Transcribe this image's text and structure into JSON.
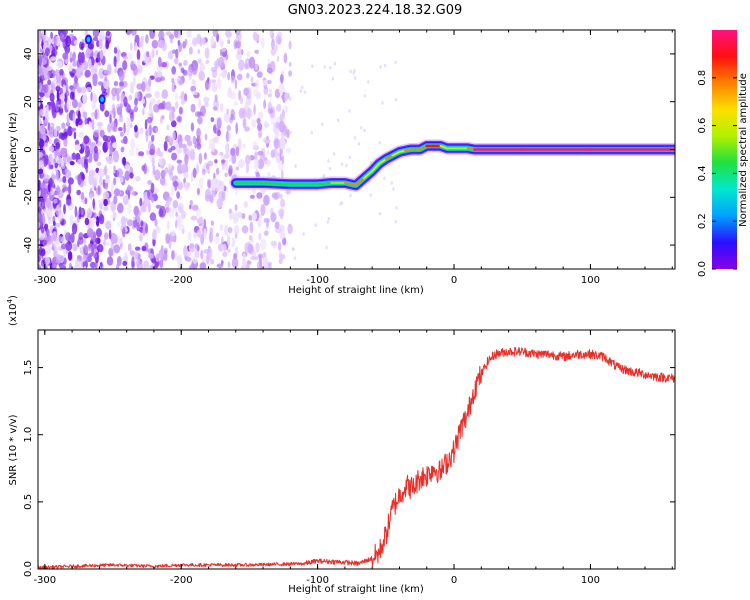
{
  "title": "GN03.2023.224.18.32.G09",
  "chart_data": [
    {
      "type": "heatmap",
      "xlabel": "Height of straight line (km)",
      "ylabel": "Frequency (Hz)",
      "xlim": [
        -305,
        162
      ],
      "ylim": [
        -50,
        50
      ],
      "xticks": [
        -300,
        -200,
        -100,
        0,
        100
      ],
      "yticks": [
        -40,
        -20,
        0,
        20,
        40
      ],
      "colorbar": {
        "label": "Normalized spectral amplitude",
        "range": [
          0.0,
          1.0
        ],
        "ticks": [
          "0.0",
          "0.2",
          "0.4",
          "0.6",
          "0.8"
        ],
        "colors": [
          "#8a00e6",
          "#2a10ff",
          "#00a0ff",
          "#00e8d0",
          "#20e040",
          "#b0f000",
          "#ffe000",
          "#ff8000",
          "#ff1010",
          "#ff1080"
        ]
      },
      "ridge": {
        "x": [
          -160,
          -140,
          -120,
          -100,
          -90,
          -80,
          -72,
          -66,
          -60,
          -55,
          -50,
          -45,
          -40,
          -36,
          -32,
          -25,
          -20,
          -15,
          -10,
          -5,
          0,
          10,
          15,
          50,
          100,
          162
        ],
        "y": [
          -14,
          -14,
          -14.5,
          -14.5,
          -14,
          -14,
          -15,
          -12,
          -9,
          -6,
          -4,
          -2.5,
          -1,
          -0.5,
          0,
          0,
          1.5,
          1.5,
          1.5,
          0.5,
          0.5,
          0.5,
          0,
          0,
          0,
          0
        ],
        "amplitude": [
          0.1,
          0.45,
          0.55,
          0.5,
          0.5,
          0.6,
          0.9,
          0.7,
          0.65,
          0.6,
          0.75,
          0.7,
          0.6,
          0.7,
          0.85,
          0.6,
          0.9,
          0.9,
          0.8,
          0.6,
          0.6,
          0.6,
          1.0,
          1.0,
          1.0,
          1.0
        ]
      }
    },
    {
      "type": "line",
      "xlabel": "Height of straight line (km)",
      "ylabel": "SNR (10 * v/v)",
      "scale_label": "(x10",
      "scale_exponent": "4",
      "scale_suffix": ")",
      "xlim": [
        -305,
        162
      ],
      "ylim": [
        0,
        1.78
      ],
      "xticks": [
        -300,
        -200,
        -100,
        0,
        100
      ],
      "yticks": [
        0.0,
        0.5,
        1.0,
        1.5
      ],
      "ytick_labels": [
        "0.0",
        "0.5",
        "1.0",
        "1.5"
      ],
      "series": [
        {
          "color": "#e8302a",
          "x": [
            -305,
            -280,
            -250,
            -220,
            -200,
            -150,
            -110,
            -100,
            -80,
            -70,
            -60,
            -55,
            -50,
            -45,
            -40,
            -35,
            -30,
            -25,
            -20,
            -15,
            -10,
            -5,
            0,
            5,
            10,
            15,
            20,
            25,
            30,
            40,
            50,
            60,
            70,
            80,
            90,
            100,
            110,
            120,
            130,
            140,
            150,
            162
          ],
          "y": [
            0.01,
            0.02,
            0.03,
            0.02,
            0.03,
            0.03,
            0.04,
            0.06,
            0.05,
            0.04,
            0.08,
            0.12,
            0.25,
            0.45,
            0.55,
            0.62,
            0.6,
            0.68,
            0.7,
            0.75,
            0.72,
            0.8,
            0.88,
            1.05,
            1.15,
            1.35,
            1.45,
            1.55,
            1.6,
            1.62,
            1.62,
            1.6,
            1.6,
            1.58,
            1.6,
            1.6,
            1.58,
            1.5,
            1.47,
            1.45,
            1.43,
            1.42
          ]
        }
      ]
    }
  ]
}
